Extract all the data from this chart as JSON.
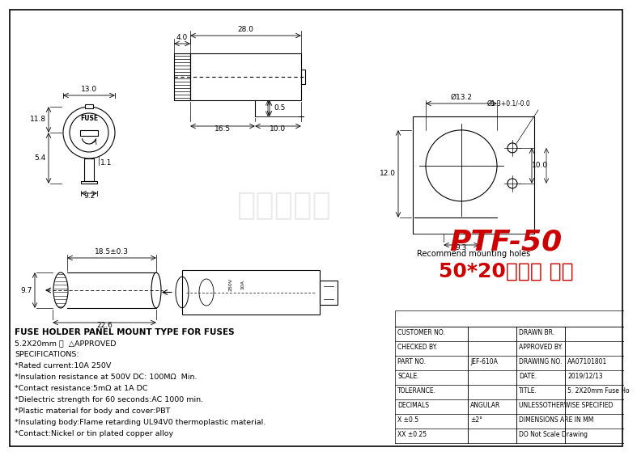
{
  "title": "PTF-50",
  "subtitle": "50*20保险座 卧式",
  "bg_color": "#ffffff",
  "line_color": "#000000",
  "red_color": "#cc0000",
  "spec_lines": [
    "FUSE HOLDER PANEL MOUNT TYPE FOR FUSES",
    "5.2X20mm Ⓡ  △APPROVED",
    "SPECIFICATIONS:",
    "*Rated current:10A 250V",
    "*Insulation resistance at 500V DC: 100MΩ  Min.",
    "*Contact resistance:5mΩ at 1A DC",
    "*Dielectric strength for 60 seconds:AC 1000 min.",
    "*Plastic material for body and cover:PBT",
    "*Insulating body:Flame retarding UL94V0 thermoplastic material.",
    "*Contact:Nickel or tin plated copper alloy"
  ],
  "watermark": "电子元器件",
  "table_rows": [
    [
      "CUSTOMER NO.",
      "",
      "DRAWN BR.",
      ""
    ],
    [
      "CHECKED BY.",
      "",
      "APPROVED BY.",
      ""
    ],
    [
      "PART NO.",
      "JEF-610A",
      "DRAWING NO.",
      "AA07101801"
    ],
    [
      "SCALE.",
      "",
      "DATE.",
      "2019/12/13"
    ],
    [
      "TOLERANCE.",
      "",
      "TITLE.",
      "5. 2X20mm Fuse Ho"
    ],
    [
      "DECIMALS",
      "ANGULAR",
      "UNLESSOTHERWISE SPECIFIED",
      ""
    ],
    [
      "X ±0.5",
      "±2°",
      "DIMENSIONS ARE IN MM",
      ""
    ],
    [
      "XX ±0.25",
      "",
      "DO Not Scale Drawing",
      ""
    ]
  ]
}
